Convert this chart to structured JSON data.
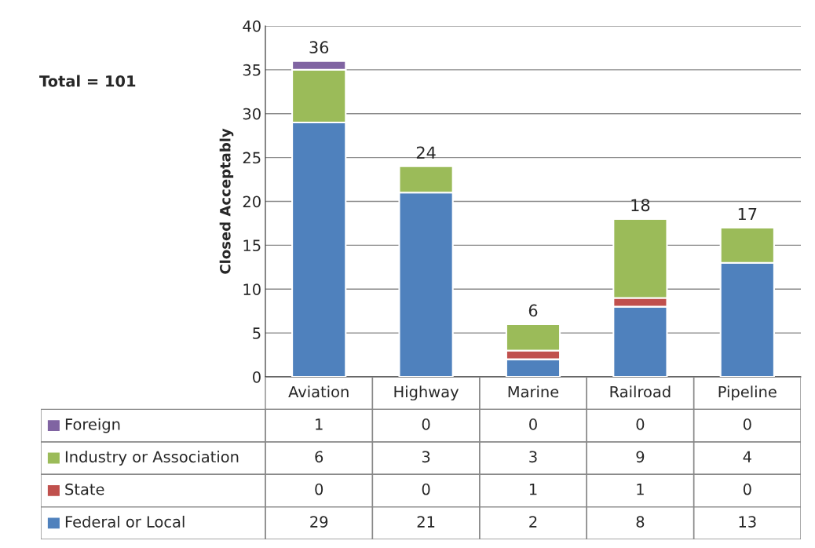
{
  "chart_data": {
    "type": "bar",
    "stacked": true,
    "ylabel": "Closed Acceptably",
    "categories": [
      "Aviation",
      "Highway",
      "Marine",
      "Railroad",
      "Pipeline"
    ],
    "series": [
      {
        "name": "Federal or Local",
        "color": "#4f81bd",
        "values": [
          29,
          21,
          2,
          8,
          13
        ]
      },
      {
        "name": "State",
        "color": "#c0504d",
        "values": [
          0,
          0,
          1,
          1,
          0
        ]
      },
      {
        "name": "Industry or Association",
        "color": "#9bbb59",
        "values": [
          6,
          3,
          3,
          9,
          4
        ]
      },
      {
        "name": "Foreign",
        "color": "#8064a2",
        "values": [
          1,
          0,
          0,
          0,
          0
        ]
      }
    ],
    "totals": [
      "36",
      "24",
      "6",
      "18",
      "17"
    ],
    "data_labels": true,
    "ylim": [
      0,
      40
    ],
    "yticks": [
      0,
      5,
      10,
      15,
      20,
      25,
      30,
      35,
      40
    ],
    "grid": "y",
    "legend": "bottom",
    "annotations": [
      "Total = 101"
    ]
  }
}
